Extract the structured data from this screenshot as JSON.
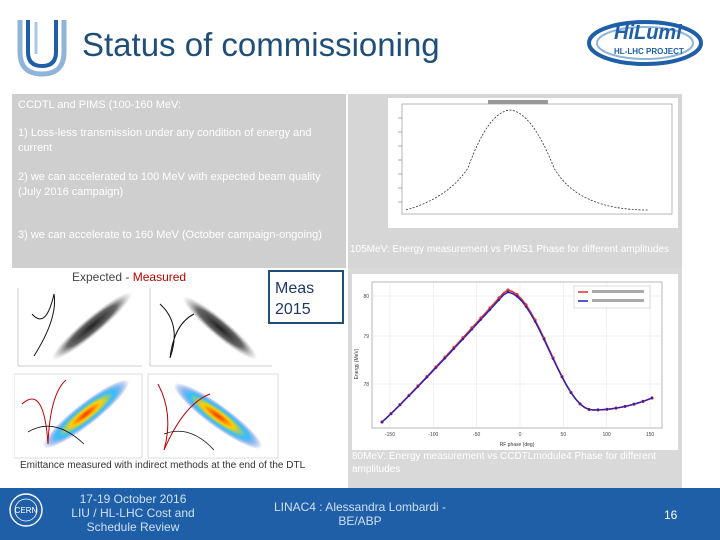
{
  "header": {
    "title": "Status of commissioning",
    "logo_text": "HiLumi",
    "logo_subtext": "HL-LHC PROJECT"
  },
  "text_panel": {
    "heading": "CCDTL and PIMS (100-160 MeV:",
    "point1": "1) Loss-less transmission under any condition of energy and current",
    "point2": "2) we can accelerated to 100 MeV with expected beam quality (July 2016 campaign)",
    "point3": "3) we can accelerate to 160 MeV (October campaign-ongoing)"
  },
  "emittance": {
    "label_expected": "Expected",
    "label_sep": " - ",
    "label_measured": "Measured",
    "meas_line1": "Meas",
    "meas_line2": "2015",
    "caption": "Emittance measured with indirect methods at the end of the DTL"
  },
  "plot_top": {
    "caption": "105MeV: Energy measurement vs PIMS1 Phase for different amplitudes"
  },
  "plot_bottom": {
    "caption": "80MeV: Energy measurement vs CCDTLmodule4 Phase for different amplitudes",
    "xlabel": "RF phase (deg)",
    "ylabel": "Energy (MeV)",
    "x_ticks": [
      "-150",
      "-100",
      "-50",
      "0",
      "50",
      "100",
      "150"
    ],
    "y_ticks": [
      "80",
      "79",
      "78"
    ]
  },
  "footer": {
    "left": "17-19 October 2016 LIU / HL-LHC Cost and Schedule Review",
    "center": "LINAC4 : Alessandra Lombardi - BE/ABP",
    "page": "16"
  },
  "colors": {
    "title": "#1f4e79",
    "footer": "#1f5fa8",
    "series_red": "#e03030",
    "series_blue": "#2020c0"
  }
}
